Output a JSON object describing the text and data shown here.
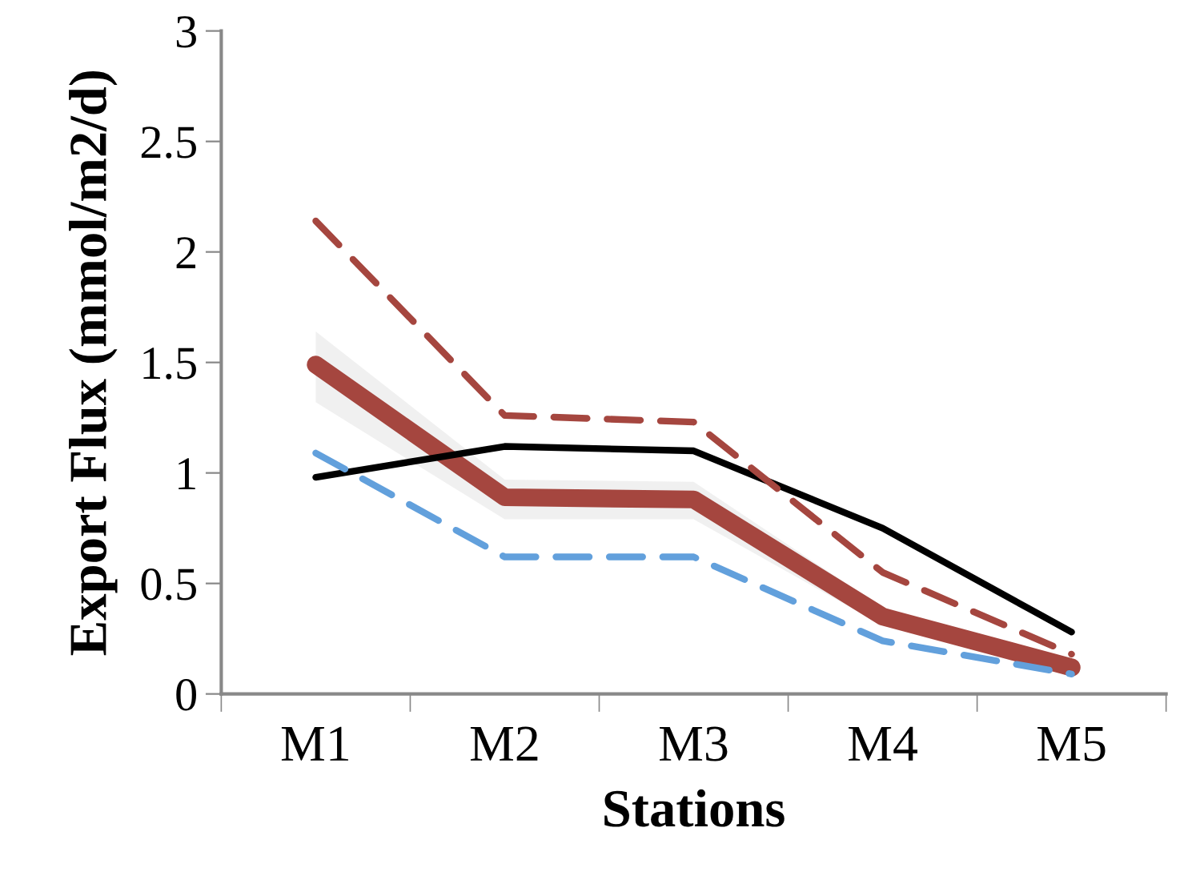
{
  "chart_data": {
    "type": "line",
    "xlabel": "Stations",
    "ylabel": "Export Flux (mmol/m2/d)",
    "categories": [
      "M1",
      "M2",
      "M3",
      "M4",
      "M5"
    ],
    "series": [
      {
        "color": "#000000",
        "values": [
          0.98,
          1.12,
          1.1,
          0.75,
          0.28
        ],
        "line_style": "solid"
      },
      {
        "color": "#a5463f",
        "values": [
          2.14,
          1.26,
          1.23,
          0.55,
          0.18
        ],
        "line_style": "dashed"
      },
      {
        "color": "#62a0dc",
        "values": [
          1.09,
          0.62,
          0.62,
          0.24,
          0.09
        ],
        "line_style": "dashed"
      },
      {
        "color": "#a5463f",
        "values": [
          1.49,
          0.89,
          0.88,
          0.35,
          0.12
        ],
        "line_style": "solid",
        "lower": [
          1.32,
          0.79,
          0.79,
          0.31,
          0.1
        ],
        "upper": [
          1.64,
          0.97,
          0.96,
          0.39,
          0.14
        ]
      }
    ],
    "ylim": [
      0,
      3
    ],
    "yticks": [
      0,
      0.5,
      1,
      1.5,
      2,
      2.5,
      3
    ],
    "grid": false,
    "legend": false,
    "marker": "none"
  }
}
